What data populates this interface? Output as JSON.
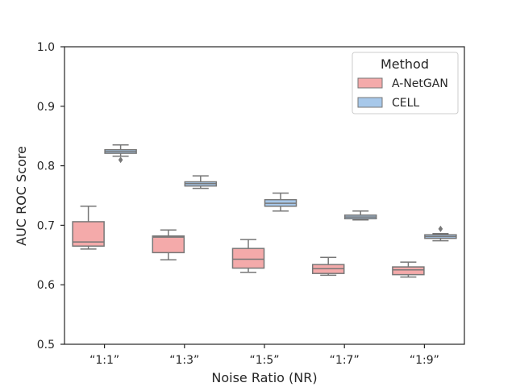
{
  "chart_data": {
    "type": "boxplot",
    "xlabel": "Noise Ratio (NR)",
    "ylabel": "AUC ROC Score",
    "ylim": [
      0.5,
      1.0
    ],
    "yticks": [
      "0.5",
      "0.6",
      "0.7",
      "0.8",
      "0.9",
      "1.0"
    ],
    "categories": [
      "“1:1”",
      "“1:3”",
      "“1:5”",
      "“1:7”",
      "“1:9”"
    ],
    "legend": {
      "title": "Method",
      "position": "top-right"
    },
    "grid": false,
    "series": [
      {
        "name": "A-NetGAN",
        "color": "#f4aaaa",
        "boxes": [
          {
            "whisker_low": 0.66,
            "q1": 0.665,
            "median": 0.672,
            "q3": 0.706,
            "whisker_high": 0.732,
            "outliers": []
          },
          {
            "whisker_low": 0.642,
            "q1": 0.654,
            "median": 0.68,
            "q3": 0.682,
            "whisker_high": 0.692,
            "outliers": []
          },
          {
            "whisker_low": 0.621,
            "q1": 0.628,
            "median": 0.643,
            "q3": 0.661,
            "whisker_high": 0.676,
            "outliers": []
          },
          {
            "whisker_low": 0.616,
            "q1": 0.619,
            "median": 0.627,
            "q3": 0.634,
            "whisker_high": 0.646,
            "outliers": []
          },
          {
            "whisker_low": 0.613,
            "q1": 0.617,
            "median": 0.625,
            "q3": 0.63,
            "whisker_high": 0.638,
            "outliers": []
          }
        ]
      },
      {
        "name": "CELL",
        "color": "#a7c8ea",
        "boxes": [
          {
            "whisker_low": 0.816,
            "q1": 0.821,
            "median": 0.824,
            "q3": 0.827,
            "whisker_high": 0.835,
            "outliers": [
              0.81
            ]
          },
          {
            "whisker_low": 0.762,
            "q1": 0.766,
            "median": 0.77,
            "q3": 0.773,
            "whisker_high": 0.783,
            "outliers": []
          },
          {
            "whisker_low": 0.724,
            "q1": 0.732,
            "median": 0.737,
            "q3": 0.743,
            "whisker_high": 0.754,
            "outliers": []
          },
          {
            "whisker_low": 0.709,
            "q1": 0.711,
            "median": 0.714,
            "q3": 0.717,
            "whisker_high": 0.724,
            "outliers": []
          },
          {
            "whisker_low": 0.674,
            "q1": 0.678,
            "median": 0.681,
            "q3": 0.684,
            "whisker_high": 0.686,
            "outliers": [
              0.694
            ]
          }
        ]
      }
    ]
  }
}
